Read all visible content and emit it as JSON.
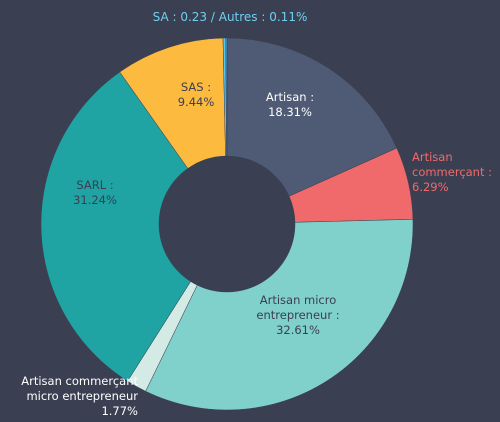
{
  "chart_data": {
    "type": "donut",
    "categories": [
      "Artisan :",
      "Artisan commerçant :",
      "Artisan micro entrepreneur :",
      "Artisan commerçant micro entrepreneur",
      "SARL :",
      "SAS :",
      null,
      null
    ],
    "values": [
      18.31,
      6.29,
      32.61,
      1.77,
      31.24,
      9.44,
      0.23,
      0.11
    ],
    "value_labels": [
      "18.31%",
      "6.29%",
      "32.61%",
      "1.77%",
      "31.24%",
      "9.44%",
      null,
      null
    ],
    "colors": [
      "#4f5a74",
      "#f06a6b",
      "#80d0cb",
      "#d3ebe4",
      "#1fa3a3",
      "#fcba3f",
      "#5cc8ee",
      "#3b9fd6"
    ],
    "annotation": "SA : 0.23 / Autres : 0.11%"
  }
}
